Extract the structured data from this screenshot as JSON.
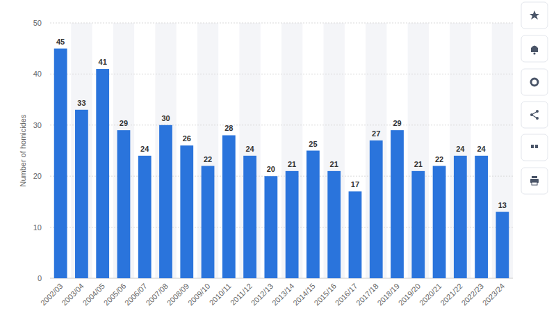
{
  "chart_data": {
    "type": "bar",
    "y_label": "Number of homicides",
    "categories": [
      "2002/03",
      "2003/04",
      "2004/05",
      "2005/06",
      "2006/07",
      "2007/08",
      "2008/09",
      "2009/10",
      "2010/11",
      "2011/12",
      "2012/13",
      "2013/14",
      "2014/15",
      "2015/16",
      "2016/17",
      "2017/18",
      "2018/19",
      "2019/20",
      "2020/21",
      "2021/22",
      "2022/23",
      "2023/24"
    ],
    "values": [
      45,
      33,
      41,
      29,
      24,
      30,
      26,
      22,
      28,
      24,
      20,
      21,
      25,
      21,
      17,
      27,
      29,
      21,
      22,
      24,
      24,
      13
    ],
    "color": "#2a74dc",
    "ylim": [
      0,
      50
    ],
    "yticks": [
      0,
      10,
      20,
      30,
      40,
      50
    ],
    "grid": true,
    "data_labels": true
  }
}
